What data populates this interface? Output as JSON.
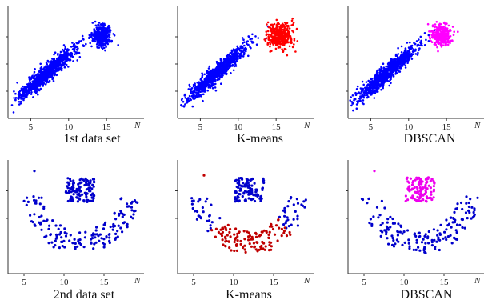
{
  "figure": {
    "description_rows": [
      "1st data set",
      "2nd data set"
    ]
  },
  "chart_data": [
    {
      "id": "p1",
      "type": "scatter",
      "title": "1st data set",
      "x_ticks": [
        "5",
        "10",
        "15"
      ],
      "x_axis_label": "N",
      "xlim": [
        2,
        21
      ],
      "ylim": [
        0,
        10
      ],
      "series": [
        {
          "color": "#0000ff",
          "cluster": "large",
          "center": [
            7.2,
            4.2
          ],
          "spread": [
            2.3,
            1.6
          ],
          "count": 900
        },
        {
          "color": "#0000ff",
          "cluster": "small",
          "center": [
            14.3,
            7.6
          ],
          "spread": [
            1.2,
            0.9
          ],
          "count": 350
        }
      ]
    },
    {
      "id": "p2",
      "type": "scatter",
      "title": "K-means",
      "x_ticks": [
        "5",
        "10",
        "15"
      ],
      "x_axis_label": "N",
      "xlim": [
        2,
        21
      ],
      "ylim": [
        0,
        10
      ],
      "series": [
        {
          "color": "#0000ff",
          "cluster": "large",
          "center": [
            7.2,
            4.2
          ],
          "spread": [
            2.3,
            1.6
          ],
          "count": 900
        },
        {
          "color": "#ff0000",
          "cluster": "small",
          "center": [
            15.5,
            7.6
          ],
          "spread": [
            1.5,
            1.1
          ],
          "count": 400
        }
      ]
    },
    {
      "id": "p3",
      "type": "scatter",
      "title": "DBSCAN",
      "x_ticks": [
        "5",
        "10",
        "15"
      ],
      "x_axis_label": "N",
      "xlim": [
        2,
        21
      ],
      "ylim": [
        0,
        10
      ],
      "series": [
        {
          "color": "#0000ff",
          "cluster": "large",
          "center": [
            7.2,
            4.2
          ],
          "spread": [
            2.3,
            1.6
          ],
          "count": 900
        },
        {
          "color": "#ff00ff",
          "cluster": "small",
          "center": [
            14.3,
            7.6
          ],
          "spread": [
            1.2,
            0.9
          ],
          "count": 350
        }
      ]
    },
    {
      "id": "p4",
      "type": "scatter",
      "title": "2nd data set",
      "x_ticks": [
        "5",
        "10",
        "15"
      ],
      "x_axis_label": "N",
      "xlim": [
        3,
        21
      ],
      "ylim": [
        0,
        10
      ],
      "series": [
        {
          "color": "#0000cc",
          "cluster": "blob",
          "center": [
            12,
            7.6
          ],
          "spread": [
            2.0,
            1.3
          ],
          "count": 110
        },
        {
          "color": "#0000cc",
          "cluster": "arc",
          "center": [
            12,
            7.8
          ],
          "spread": [
            6.2,
            5.0
          ],
          "count": 160
        },
        {
          "color": "#0000cc",
          "cluster": "outlier",
          "center": [
            6.3,
            9.3
          ],
          "spread": [
            0,
            0
          ],
          "count": 1
        }
      ]
    },
    {
      "id": "p5",
      "type": "scatter",
      "title": "K-means",
      "x_ticks": [
        "5",
        "10",
        "15"
      ],
      "x_axis_label": "N",
      "xlim": [
        3,
        21
      ],
      "ylim": [
        0,
        10
      ],
      "series": [
        {
          "color": "#0000cc",
          "cluster": "blob",
          "center": [
            12,
            7.6
          ],
          "spread": [
            2.0,
            1.3
          ],
          "count": 110
        },
        {
          "color": "#0000cc",
          "cluster": "arc-ends",
          "center": [
            12,
            7.8
          ],
          "spread": [
            6.2,
            5.0
          ],
          "count": 60
        },
        {
          "color": "#c00000",
          "cluster": "arc-bottom",
          "center": [
            12,
            7.8
          ],
          "spread": [
            6.2,
            5.0
          ],
          "count": 120
        },
        {
          "color": "#c00000",
          "cluster": "outlier",
          "center": [
            6.3,
            8.9
          ],
          "spread": [
            0,
            0
          ],
          "count": 1
        }
      ]
    },
    {
      "id": "p6",
      "type": "scatter",
      "title": "DBSCAN",
      "x_ticks": [
        "5",
        "10",
        "15"
      ],
      "x_axis_label": "N",
      "xlim": [
        3,
        21
      ],
      "ylim": [
        0,
        10
      ],
      "series": [
        {
          "color": "#ee00ee",
          "cluster": "blob",
          "center": [
            12,
            7.6
          ],
          "spread": [
            2.0,
            1.3
          ],
          "count": 110
        },
        {
          "color": "#0000cc",
          "cluster": "arc",
          "center": [
            12,
            7.8
          ],
          "spread": [
            6.2,
            5.0
          ],
          "count": 160
        },
        {
          "color": "#ee00ee",
          "cluster": "outlier",
          "center": [
            6.3,
            9.3
          ],
          "spread": [
            0,
            0
          ],
          "count": 1
        }
      ]
    }
  ]
}
